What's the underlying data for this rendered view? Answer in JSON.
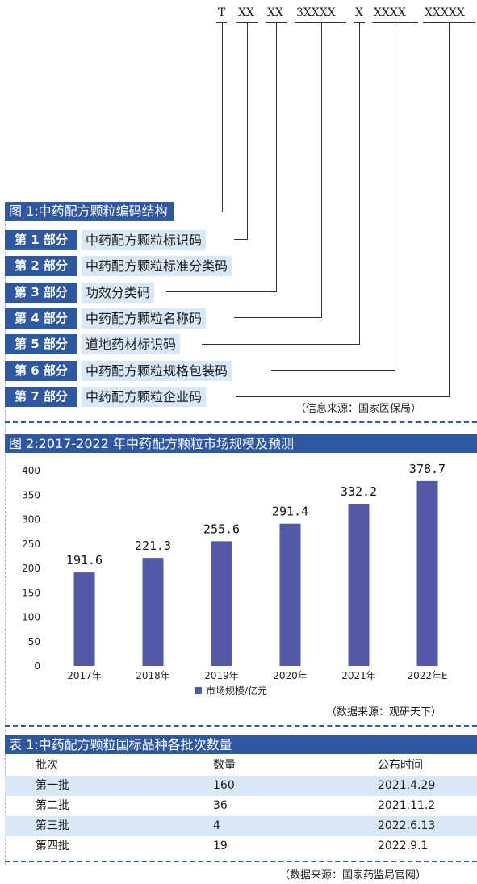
{
  "figure1": {
    "code_segments": [
      "T",
      "XX",
      "XX",
      "3XXXX",
      "X",
      "XXXX",
      "XXXXX"
    ],
    "title": "图 1:中药配方颗粒编码结构",
    "parts": [
      {
        "tag": "第 1 部分",
        "desc": "中药配方颗粒标识码"
      },
      {
        "tag": "第 2 部分",
        "desc": "中药配方颗粒标准分类码"
      },
      {
        "tag": "第 3 部分",
        "desc": "功效分类码"
      },
      {
        "tag": "第 4 部分",
        "desc": "中药配方颗粒名称码"
      },
      {
        "tag": "第 5 部分",
        "desc": "道地药材标识码"
      },
      {
        "tag": "第 6 部分",
        "desc": "中药配方颗粒规格包装码"
      },
      {
        "tag": "第 7 部分",
        "desc": "中药配方颗粒企业码"
      }
    ],
    "source": "（信息来源：国家医保局）"
  },
  "figure2": {
    "title": "图 2:2017-2022 年中药配方颗粒市场规模及预测",
    "source": "（数据来源：观研天下）"
  },
  "chart_data": {
    "type": "bar",
    "title": "图 2:2017-2022 年中药配方颗粒市场规模及预测",
    "categories": [
      "2017年",
      "2018年",
      "2019年",
      "2020年",
      "2021年",
      "2022年E"
    ],
    "series": [
      {
        "name": "市场规模/亿元",
        "values": [
          191.6,
          221.3,
          255.6,
          291.4,
          332.2,
          378.7
        ]
      }
    ],
    "value_labels": [
      "191.6",
      "221.3",
      "255.6",
      "291.4",
      "332.2",
      "378.7"
    ],
    "yticks": [
      "0",
      "50",
      "100",
      "150",
      "200",
      "250",
      "300",
      "350",
      "400"
    ],
    "ylim": [
      0,
      400
    ],
    "bar_color": "#5359a6",
    "legend_position": "bottom",
    "grid": false
  },
  "table1": {
    "title": "表 1:中药配方颗粒国标品种各批次数量",
    "headers": [
      "批次",
      "数量",
      "公布时间"
    ],
    "rows": [
      [
        "第一批",
        "160",
        "2021.4.29"
      ],
      [
        "第二批",
        "36",
        "2021.11.2"
      ],
      [
        "第三批",
        "4",
        "2022.6.13"
      ],
      [
        "第四批",
        "19",
        "2022.9.1"
      ]
    ],
    "source": "（数据来源：国家药监局官网）"
  },
  "colors": {
    "accent": "#2e58a0",
    "light": "#d8e8f6",
    "bar": "#5359a6"
  }
}
